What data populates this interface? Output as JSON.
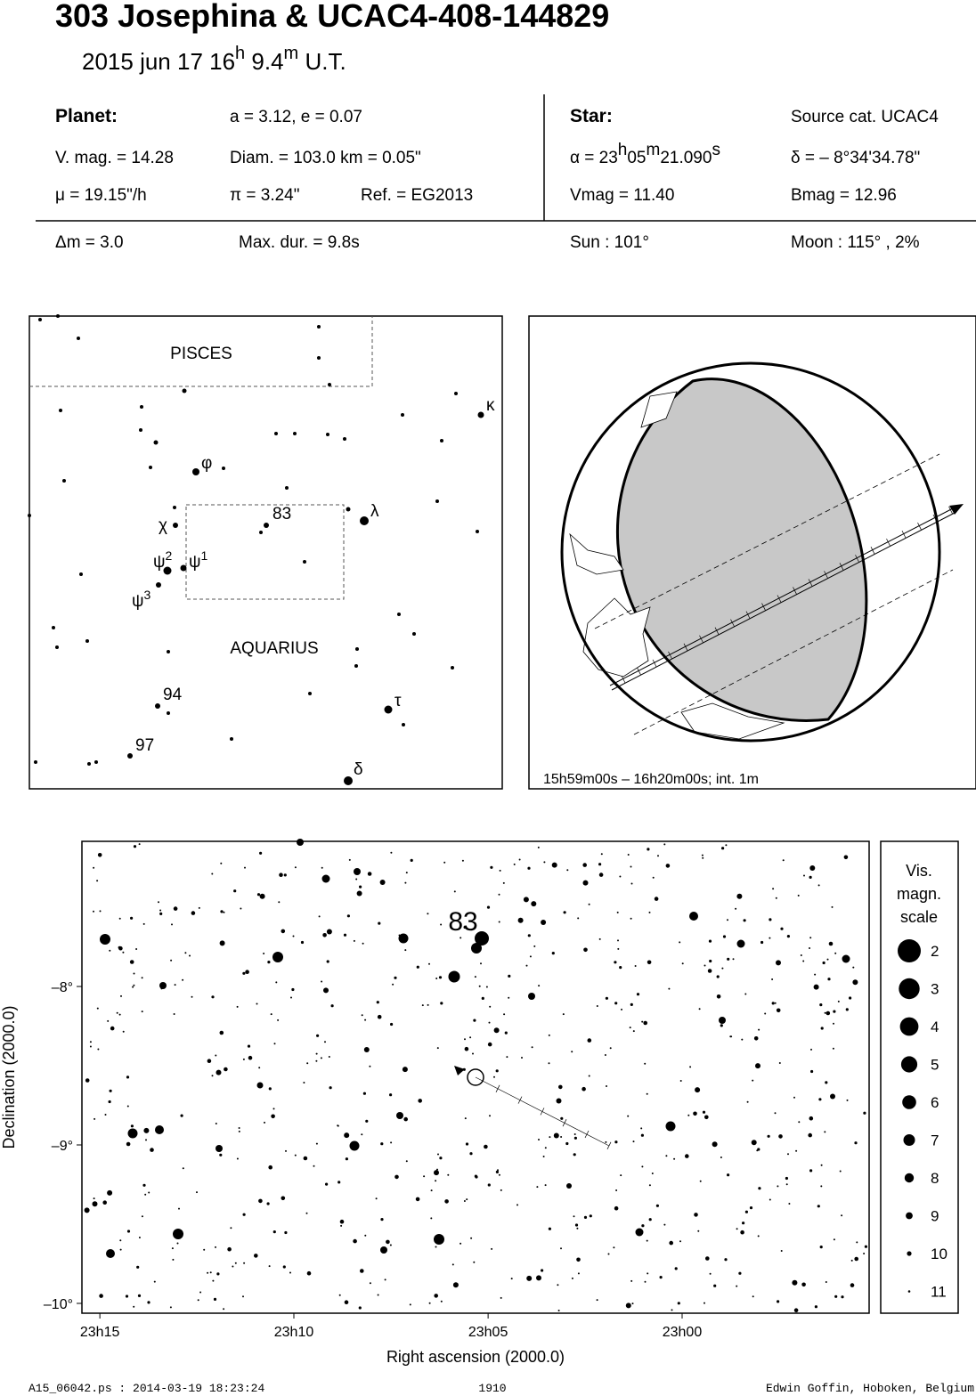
{
  "header": {
    "title": "303 Josephina  &  UCAC4-408-144829",
    "date": "2015 jun 17  16",
    "date_h": "h",
    "date_min": " 9.4",
    "date_m": "m",
    "date_ut": " U.T."
  },
  "info": {
    "planet_label": "Planet:",
    "orbit": "a = 3.12, e = 0.07",
    "vmag": "V. mag. = 14.28",
    "diam": "Diam. = 103.0 km = 0.05\"",
    "mu": "μ =  19.15\"/h",
    "pi": "π =  3.24\"",
    "ref": "Ref. = EG2013",
    "star_label": "Star:",
    "source": "Source cat.  UCAC4",
    "alpha": "α = 23",
    "alpha_h": "h",
    "alpha_min": "05",
    "alpha_m": "m",
    "alpha_sec": "21.090",
    "alpha_s": "s",
    "delta": "δ = – 8°34'34.78\"",
    "star_vmag": "Vmag = 11.40",
    "star_bmag": "Bmag = 12.96",
    "dm": "Δm = 3.0",
    "maxdur": "Max. dur. = 9.8s",
    "sun": "Sun : 101°",
    "moon": "Moon : 115° ,  2%"
  },
  "finder": {
    "constellations": [
      "PISCES",
      "AQUARIUS"
    ],
    "labels": [
      {
        "text": "κ"
      },
      {
        "text": "φ"
      },
      {
        "text": "83"
      },
      {
        "text": "λ"
      },
      {
        "text": "χ"
      },
      {
        "text": "ψ",
        "sup": "2"
      },
      {
        "text": "ψ",
        "sup": "1"
      },
      {
        "text": "ψ",
        "sup": "3"
      },
      {
        "text": "94"
      },
      {
        "text": "τ"
      },
      {
        "text": "97"
      },
      {
        "text": "δ"
      }
    ]
  },
  "globe": {
    "caption": "15h59m00s – 16h20m00s; int.  1m"
  },
  "star_chart": {
    "star_label": "83",
    "xlabel": "Right ascension (2000.0)",
    "ylabel": "Declination (2000.0)",
    "xlim": [
      23.2577,
      22.9197
    ],
    "ylim": [
      -10.062,
      -7.084
    ],
    "xticks": [
      {
        "value": 23.25,
        "label": "23h15"
      },
      {
        "value": 23.1667,
        "label": "23h10"
      },
      {
        "value": 23.0833,
        "label": "23h05"
      },
      {
        "value": 23.0,
        "label": "23h00"
      }
    ],
    "yticks": [
      {
        "value": -8,
        "label": "–8°"
      },
      {
        "value": -9,
        "label": "–9°"
      },
      {
        "value": -10,
        "label": "–10°"
      }
    ],
    "scale_title": [
      "Vis.",
      "magn.",
      "scale"
    ],
    "scale": [
      2,
      3,
      4,
      5,
      6,
      7,
      8,
      9,
      10,
      11
    ]
  },
  "footer": {
    "file": "A15_06042.ps : 2014-03-19 18:23:24",
    "page": "1910",
    "author": "Edwin Goffin, Hoboken, Belgium"
  }
}
